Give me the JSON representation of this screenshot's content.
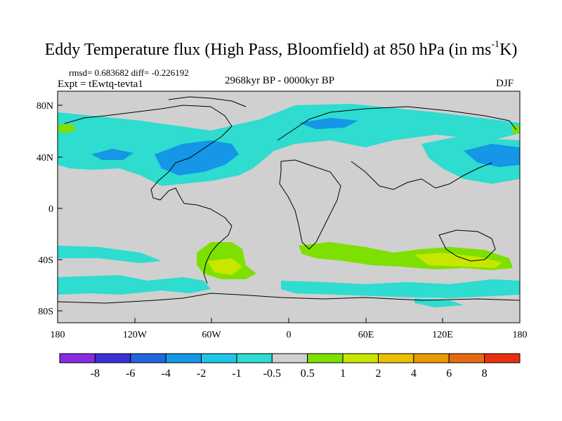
{
  "title_main": "Eddy Temperature flux (High Pass, Bloomfield) at 850 hPa (in ms",
  "title_sup": "-1",
  "title_end": "K)",
  "stats": "rmsd= 0.683682 diff= -0.226192",
  "experiment": "Expt = tEwtq-tevta1",
  "period": "2968kyr BP - 0000kyr BP",
  "season": "DJF",
  "lat_ticks": [
    "80N",
    "40N",
    "0",
    "40S",
    "80S"
  ],
  "lon_ticks": [
    "180",
    "120W",
    "60W",
    "0",
    "60E",
    "120E",
    "180"
  ],
  "colorbar": {
    "labels": [
      "-8",
      "-6",
      "-4",
      "-2",
      "-1",
      "-0.5",
      "0.5",
      "1",
      "2",
      "4",
      "6",
      "8"
    ],
    "colors": [
      "#8a2be2",
      "#3b2fd6",
      "#1f66e0",
      "#1596e6",
      "#1ec6e8",
      "#2edcd0",
      "#d0d0d0",
      "#7ee000",
      "#c8e600",
      "#e8c000",
      "#e89a00",
      "#e86a10",
      "#e83010"
    ]
  },
  "colors": {
    "background_field": "#d0d0d0",
    "coastline": "#000000"
  }
}
